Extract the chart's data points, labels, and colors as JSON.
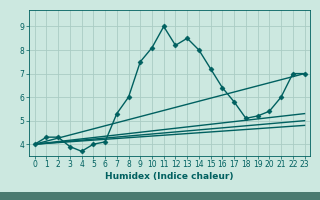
{
  "background_color": "#cce8e0",
  "plot_bg_color": "#cce8e0",
  "bottom_bar_color": "#4a7a70",
  "grid_color": "#aaccc4",
  "line_color": "#006060",
  "xlabel": "Humidex (Indice chaleur)",
  "xlim": [
    -0.5,
    23.5
  ],
  "ylim": [
    3.5,
    9.7
  ],
  "yticks": [
    4,
    5,
    6,
    7,
    8,
    9
  ],
  "xticks": [
    0,
    1,
    2,
    3,
    4,
    5,
    6,
    7,
    8,
    9,
    10,
    11,
    12,
    13,
    14,
    15,
    16,
    17,
    18,
    19,
    20,
    21,
    22,
    23
  ],
  "series": {
    "main": {
      "x": [
        0,
        1,
        2,
        3,
        4,
        5,
        6,
        7,
        8,
        9,
        10,
        11,
        12,
        13,
        14,
        15,
        16,
        17,
        18,
        19,
        20,
        21,
        22,
        23
      ],
      "y": [
        4.0,
        4.3,
        4.3,
        3.9,
        3.7,
        4.0,
        4.1,
        5.3,
        6.0,
        7.5,
        8.1,
        9.0,
        8.2,
        8.5,
        8.0,
        7.2,
        6.4,
        5.8,
        5.1,
        5.2,
        5.4,
        6.0,
        7.0,
        7.0
      ]
    },
    "linear1": {
      "x": [
        0,
        23
      ],
      "y": [
        4.0,
        7.0
      ]
    },
    "linear2": {
      "x": [
        0,
        23
      ],
      "y": [
        4.0,
        5.3
      ]
    },
    "linear3": {
      "x": [
        0,
        23
      ],
      "y": [
        4.0,
        5.0
      ]
    },
    "linear4": {
      "x": [
        0,
        23
      ],
      "y": [
        4.0,
        4.8
      ]
    }
  },
  "marker": "D",
  "markersize": 2.5,
  "linewidth": 1.0,
  "tick_fontsize": 5.5,
  "xlabel_fontsize": 6.5
}
